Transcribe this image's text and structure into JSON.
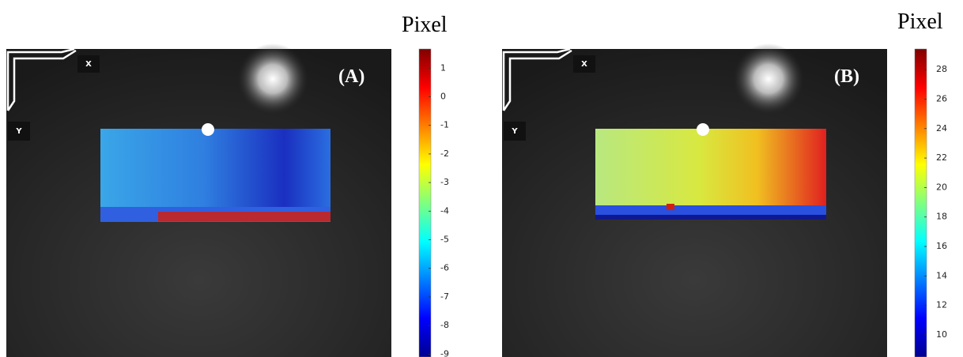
{
  "panels": [
    {
      "label": "(A)",
      "axis_x": "X",
      "axis_y": "Y",
      "colorbar": {
        "title": "Pixel",
        "lim": [
          -9.1,
          1.67
        ],
        "ticks": [
          1,
          0,
          -1,
          -2,
          -3,
          -4,
          -5,
          -6,
          -7,
          -8,
          -9
        ]
      }
    },
    {
      "label": "(B)",
      "axis_x": "X",
      "axis_y": "Y",
      "colorbar": {
        "title": "Pixel",
        "lim": [
          8.5,
          29.4
        ],
        "ticks": [
          28,
          26,
          24,
          22,
          20,
          18,
          16,
          14,
          12,
          10
        ]
      }
    }
  ]
}
